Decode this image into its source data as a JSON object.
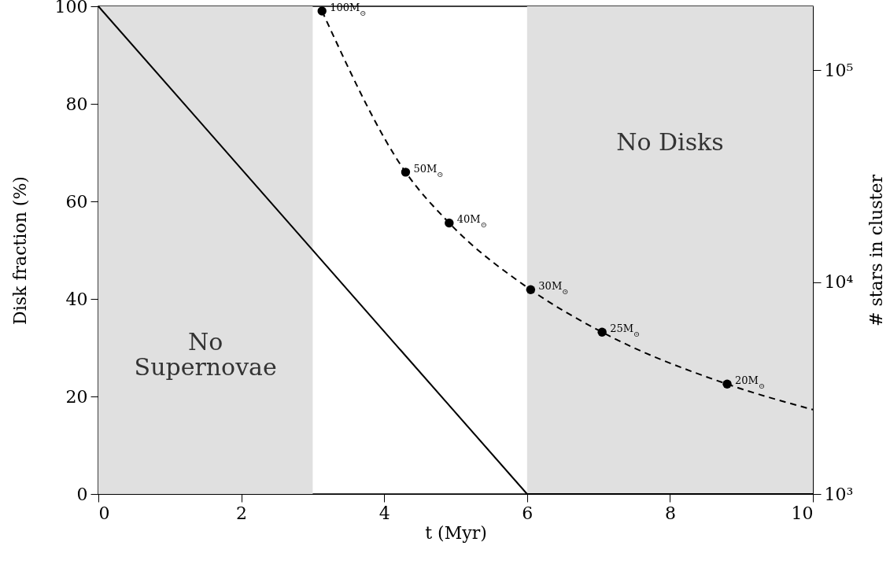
{
  "chart_data": {
    "type": "line",
    "xlabel": "t (Myr)",
    "ylabel": "Disk fraction (%)",
    "y2label": "# stars in cluster",
    "xlim": [
      0,
      10
    ],
    "xticks": [
      0,
      2,
      4,
      6,
      8,
      10
    ],
    "ylim": [
      0,
      100
    ],
    "yticks": [
      0,
      20,
      40,
      60,
      80,
      100
    ],
    "y2lim": [
      1000,
      200000
    ],
    "y2ticks": [
      {
        "value": 1000,
        "label": "10³"
      },
      {
        "value": 10000,
        "label": "10⁴"
      },
      {
        "value": 100000,
        "label": "10⁵"
      }
    ],
    "log": "y2",
    "bands": [
      {
        "axis": "x",
        "from": 0,
        "to": 3,
        "label": "No\nSupernovae",
        "color": "#e0e0e0"
      },
      {
        "axis": "x",
        "from": 6,
        "to": 10,
        "label": "No Disks",
        "color": "#e0e0e0"
      }
    ],
    "annotations": [
      "100M$_{⊙}$",
      "50M$_{⊙}$",
      "40M$_{⊙}$",
      "30M$_{⊙}$",
      "25M$_{⊙}$",
      "20M$_{⊙}$"
    ],
    "series": [
      {
        "color": "#000000",
        "line_style": "solid",
        "x": [
          0,
          6,
          10
        ],
        "values": [
          100,
          0,
          0
        ]
      },
      {
        "type": "line",
        "axis": "y2",
        "color": "#000000",
        "line_style": "dashed",
        "x": [
          3.13,
          4.3,
          4.91,
          6.05,
          7.05,
          8.8,
          10
        ],
        "values": [
          190000,
          33000,
          19000,
          9200,
          5800,
          3300,
          2500
        ]
      },
      {
        "type": "scatter",
        "axis": "y2",
        "color": "#000000",
        "marker": "circle",
        "x": [
          3.13,
          4.3,
          4.91,
          6.05,
          7.05,
          8.8
        ],
        "values": [
          190000,
          33000,
          19000,
          9200,
          5800,
          3300
        ]
      }
    ]
  }
}
